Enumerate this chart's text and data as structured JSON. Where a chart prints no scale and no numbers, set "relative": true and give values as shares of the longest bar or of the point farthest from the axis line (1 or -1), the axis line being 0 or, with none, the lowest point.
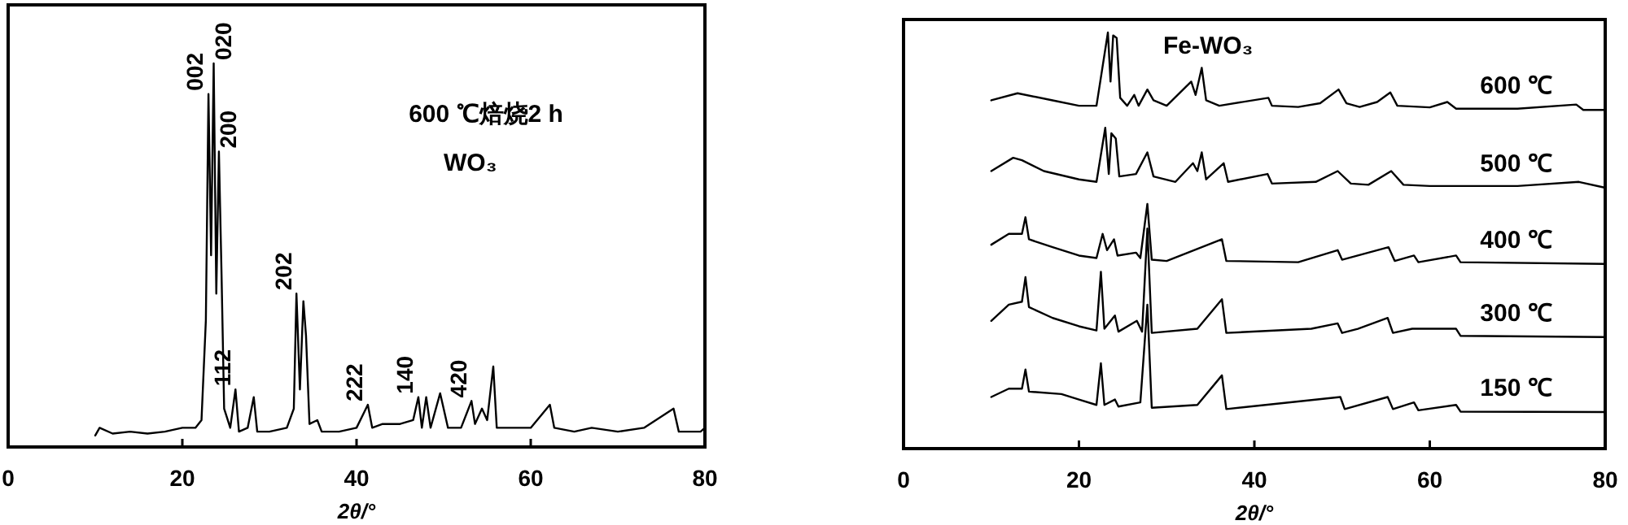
{
  "chart_data": [
    {
      "type": "line",
      "title": "600 ℃焙烧2 h",
      "subtitle": "WO₃",
      "xlabel": "2θ/°",
      "relative": true,
      "xlim": [
        0,
        80
      ],
      "xticks": [
        0,
        20,
        40,
        60,
        80
      ],
      "tick_labels": "x",
      "grid": false,
      "legend": false,
      "marker": "none",
      "line_style": "solid",
      "series": [
        {
          "color": "#000000",
          "x": [
            10,
            10.5,
            12,
            14,
            16,
            18,
            20,
            21.5,
            22.2,
            22.7,
            23.0,
            23.3,
            23.6,
            23.9,
            24.2,
            24.5,
            24.8,
            25.5,
            26.1,
            26.5,
            27.5,
            28.2,
            28.6,
            30,
            32,
            32.8,
            33.1,
            33.5,
            33.9,
            34.2,
            34.6,
            35.5,
            36,
            38,
            40,
            41.3,
            41.8,
            43,
            45,
            46.5,
            47.1,
            47.5,
            48,
            48.5,
            49.6,
            50,
            50.5,
            52,
            53.2,
            53.6,
            54.4,
            55,
            55.7,
            56.1,
            58,
            60,
            62.2,
            62.7,
            65,
            67,
            70,
            73,
            76.4,
            77,
            79.5,
            80
          ],
          "values": [
            0.03,
            0.05,
            0.035,
            0.04,
            0.035,
            0.04,
            0.05,
            0.05,
            0.07,
            0.33,
            0.92,
            0.5,
            1.0,
            0.4,
            0.77,
            0.45,
            0.1,
            0.05,
            0.15,
            0.04,
            0.05,
            0.13,
            0.04,
            0.04,
            0.05,
            0.1,
            0.4,
            0.15,
            0.38,
            0.29,
            0.06,
            0.07,
            0.04,
            0.04,
            0.05,
            0.11,
            0.05,
            0.06,
            0.06,
            0.07,
            0.13,
            0.05,
            0.13,
            0.05,
            0.14,
            0.1,
            0.05,
            0.05,
            0.12,
            0.06,
            0.1,
            0.07,
            0.21,
            0.05,
            0.05,
            0.05,
            0.11,
            0.05,
            0.04,
            0.05,
            0.04,
            0.05,
            0.1,
            0.04,
            0.04,
            0.05
          ]
        }
      ],
      "annotations": [
        {
          "text": "002",
          "x": 23.0,
          "y": 0.92
        },
        {
          "text": "020",
          "x": 23.6,
          "y": 1.0
        },
        {
          "text": "200",
          "x": 24.2,
          "y": 0.77
        },
        {
          "text": "112",
          "x": 26.1,
          "y": 0.15
        },
        {
          "text": "202",
          "x": 33.1,
          "y": 0.4
        },
        {
          "text": "222",
          "x": 41.3,
          "y": 0.11
        },
        {
          "text": "140",
          "x": 47.1,
          "y": 0.13
        },
        {
          "text": "420",
          "x": 53.2,
          "y": 0.12
        }
      ]
    },
    {
      "type": "line",
      "title": "Fe-WO₃",
      "xlabel": "2θ/°",
      "relative": true,
      "xlim": [
        0,
        80
      ],
      "xticks": [
        0,
        20,
        40,
        60,
        80
      ],
      "tick_labels": "x",
      "grid": false,
      "legend": false,
      "marker": "none",
      "line_style": "solid",
      "series": [
        {
          "name": "600 ℃",
          "color": "#000000",
          "x": [
            10,
            13,
            17,
            20,
            22,
            23.3,
            23.6,
            23.9,
            24.3,
            24.7,
            25.5,
            26.3,
            26.8,
            27.8,
            28.5,
            30,
            32.8,
            33.3,
            34,
            34.5,
            36,
            41.6,
            42,
            45,
            47.5,
            49.6,
            50.5,
            52,
            54,
            55.5,
            56.3,
            60,
            62,
            63,
            70,
            76.7,
            77.5,
            80
          ],
          "values": [
            0.837,
            0.854,
            0.837,
            0.824,
            0.824,
            1.0,
            0.882,
            0.993,
            0.987,
            0.843,
            0.824,
            0.85,
            0.824,
            0.863,
            0.837,
            0.824,
            0.882,
            0.85,
            0.915,
            0.837,
            0.824,
            0.843,
            0.824,
            0.821,
            0.83,
            0.863,
            0.83,
            0.821,
            0.833,
            0.856,
            0.824,
            0.82,
            0.833,
            0.817,
            0.817,
            0.827,
            0.814,
            0.814
          ]
        },
        {
          "name": "500 ℃",
          "color": "#000000",
          "x": [
            10,
            12.5,
            13.5,
            16,
            20,
            22,
            23,
            23.4,
            23.7,
            24.2,
            24.6,
            26.5,
            27.8,
            28.5,
            31,
            33,
            33.5,
            34,
            34.5,
            36.5,
            37,
            41.5,
            42,
            47,
            49.5,
            51,
            53,
            55.6,
            57,
            60,
            70,
            77,
            80
          ],
          "values": [
            0.667,
            0.699,
            0.693,
            0.667,
            0.647,
            0.641,
            0.771,
            0.66,
            0.758,
            0.745,
            0.654,
            0.66,
            0.712,
            0.654,
            0.641,
            0.686,
            0.667,
            0.712,
            0.647,
            0.686,
            0.641,
            0.66,
            0.637,
            0.641,
            0.667,
            0.637,
            0.634,
            0.667,
            0.634,
            0.631,
            0.631,
            0.641,
            0.627
          ]
        },
        {
          "name": "400 ℃",
          "color": "#000000",
          "x": [
            10,
            12,
            13.5,
            13.9,
            14.3,
            17,
            20,
            22,
            22.7,
            23.2,
            24,
            24.4,
            26.5,
            27,
            27.8,
            28.3,
            30,
            36.3,
            36.8,
            45,
            49.5,
            50,
            55.3,
            56,
            58.2,
            58.7,
            63,
            63.5,
            80
          ],
          "values": [
            0.49,
            0.516,
            0.516,
            0.556,
            0.503,
            0.484,
            0.464,
            0.458,
            0.516,
            0.477,
            0.503,
            0.464,
            0.471,
            0.458,
            0.588,
            0.454,
            0.451,
            0.503,
            0.451,
            0.448,
            0.477,
            0.454,
            0.484,
            0.451,
            0.464,
            0.448,
            0.464,
            0.448,
            0.444
          ]
        },
        {
          "name": "300 ℃",
          "color": "#000000",
          "x": [
            10,
            12,
            13.5,
            13.9,
            14.3,
            17,
            20,
            22,
            22.5,
            22.9,
            24.1,
            24.5,
            26.6,
            27.2,
            27.8,
            28.3,
            33.5,
            36.3,
            36.8,
            46.5,
            49.5,
            50,
            51.8,
            55.2,
            55.8,
            58,
            63,
            63.5,
            80
          ],
          "values": [
            0.307,
            0.346,
            0.353,
            0.412,
            0.34,
            0.314,
            0.294,
            0.284,
            0.425,
            0.288,
            0.32,
            0.281,
            0.307,
            0.281,
            0.529,
            0.278,
            0.288,
            0.359,
            0.278,
            0.288,
            0.301,
            0.278,
            0.288,
            0.314,
            0.278,
            0.288,
            0.288,
            0.271,
            0.268
          ]
        },
        {
          "name": "150 ℃",
          "color": "#000000",
          "x": [
            10,
            12,
            13.5,
            13.9,
            14.3,
            18,
            20,
            22,
            22.5,
            22.9,
            24.1,
            24.5,
            27,
            27.8,
            28.3,
            33.5,
            36.3,
            36.8,
            49.8,
            50.3,
            55.2,
            55.8,
            58.2,
            58.7,
            63,
            63.5,
            80
          ],
          "values": [
            0.124,
            0.144,
            0.144,
            0.19,
            0.137,
            0.131,
            0.118,
            0.105,
            0.205,
            0.105,
            0.118,
            0.101,
            0.111,
            0.346,
            0.098,
            0.105,
            0.176,
            0.095,
            0.124,
            0.095,
            0.124,
            0.095,
            0.111,
            0.092,
            0.105,
            0.089,
            0.088
          ]
        }
      ]
    }
  ]
}
